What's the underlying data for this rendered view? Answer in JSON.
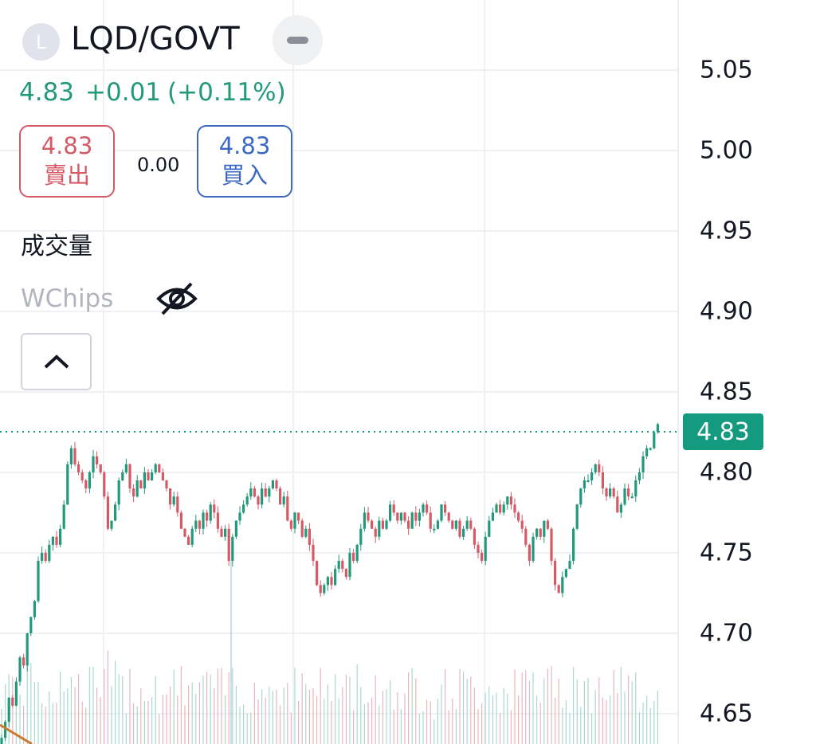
{
  "header": {
    "symbol_initial": "L",
    "symbol": "LQD/GOVT",
    "last_price": "4.83",
    "change": "+0.01",
    "change_pct": "(+0.11%)"
  },
  "trade": {
    "sell_price": "4.83",
    "sell_label": "賣出",
    "spread": "0.00",
    "buy_price": "4.83",
    "buy_label": "買入"
  },
  "indicators": {
    "volume_label": "成交量",
    "wchips_label": "WChips",
    "wchips_icon": "eye-slash-icon",
    "collapse_icon": "chevron-up-icon"
  },
  "colors": {
    "up": "#22997a",
    "down": "#d65a66",
    "sell": "#d65a66",
    "buy": "#3c68c4",
    "last_price_tag": "#139a7f",
    "moving_average": "#c97a2e"
  },
  "chart_data": {
    "type": "candlestick",
    "price_axis_ticks": [
      "5.05",
      "5.00",
      "4.95",
      "4.90",
      "4.85",
      "4.80",
      "4.75",
      "4.70",
      "4.65"
    ],
    "last_price_tag": "4.83",
    "ylim": [
      4.625,
      5.09
    ],
    "grid": true,
    "closes": [
      4.635,
      4.645,
      4.66,
      4.655,
      4.67,
      4.685,
      4.68,
      4.7,
      4.71,
      4.72,
      4.745,
      4.75,
      4.745,
      4.755,
      4.76,
      4.755,
      4.765,
      4.78,
      4.805,
      4.815,
      4.805,
      4.8,
      4.795,
      4.79,
      4.8,
      4.81,
      4.805,
      4.8,
      4.785,
      4.765,
      4.77,
      4.78,
      4.795,
      4.8,
      4.805,
      4.79,
      4.785,
      4.795,
      4.79,
      4.8,
      4.795,
      4.8,
      4.805,
      4.8,
      4.795,
      4.79,
      4.78,
      4.785,
      4.775,
      4.765,
      4.76,
      4.755,
      4.765,
      4.77,
      4.765,
      4.775,
      4.77,
      4.78,
      4.775,
      4.765,
      4.76,
      4.765,
      4.745,
      4.76,
      4.77,
      4.775,
      4.78,
      4.785,
      4.79,
      4.785,
      4.78,
      4.79,
      4.785,
      4.79,
      4.795,
      4.79,
      4.78,
      4.785,
      4.77,
      4.765,
      4.775,
      4.77,
      4.76,
      4.765,
      4.755,
      4.745,
      4.73,
      4.725,
      4.73,
      4.735,
      4.73,
      4.74,
      4.745,
      4.74,
      4.735,
      4.75,
      4.745,
      4.755,
      4.765,
      4.775,
      4.77,
      4.765,
      4.76,
      4.77,
      4.765,
      4.77,
      4.78,
      4.775,
      4.77,
      4.775,
      4.77,
      4.765,
      4.775,
      4.77,
      4.775,
      4.78,
      4.775,
      4.765,
      4.765,
      4.77,
      4.78,
      4.775,
      4.77,
      4.765,
      4.77,
      4.76,
      4.765,
      4.77,
      4.765,
      4.755,
      4.75,
      4.745,
      4.76,
      4.77,
      4.775,
      4.78,
      4.775,
      4.78,
      4.785,
      4.78,
      4.775,
      4.77,
      4.765,
      4.755,
      4.745,
      4.76,
      4.765,
      4.76,
      4.77,
      4.765,
      4.745,
      4.73,
      4.725,
      4.735,
      4.74,
      4.745,
      4.765,
      4.78,
      4.79,
      4.795,
      4.795,
      4.8,
      4.805,
      4.8,
      4.79,
      4.785,
      4.79,
      4.785,
      4.775,
      4.78,
      4.79,
      4.785,
      4.785,
      4.795,
      4.8,
      4.81,
      4.815,
      4.815,
      4.825,
      4.83
    ]
  }
}
